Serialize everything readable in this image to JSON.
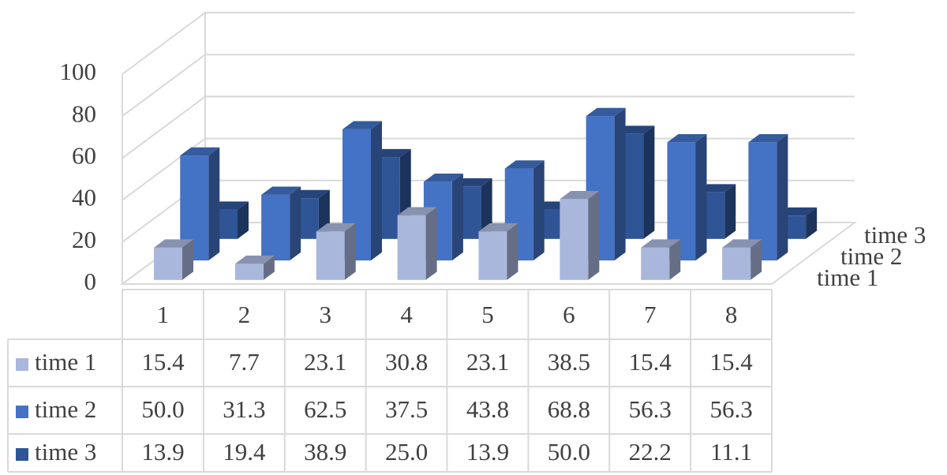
{
  "chart_data": {
    "type": "bar3d",
    "categories": [
      "1",
      "2",
      "3",
      "4",
      "5",
      "6",
      "7",
      "8"
    ],
    "series": [
      {
        "name": "time 1",
        "color": "#a9b7dc",
        "values": [
          15.4,
          7.7,
          23.1,
          30.8,
          23.1,
          38.5,
          15.4,
          15.4
        ],
        "value_labels": [
          "15.4",
          "7.7",
          "23.1",
          "30.8",
          "23.1",
          "38.5",
          "15.4",
          "15.4"
        ]
      },
      {
        "name": "time 2",
        "color": "#4472c4",
        "values": [
          50,
          31.3,
          62.5,
          37.5,
          43.8,
          68.8,
          56.3,
          56.3
        ],
        "value_labels": [
          "50.0",
          "31.3",
          "62.5",
          "37.5",
          "43.8",
          "68.8",
          "56.3",
          "56.3"
        ]
      },
      {
        "name": "time 3",
        "color": "#2f5597",
        "values": [
          13.9,
          19.4,
          38.9,
          25,
          13.9,
          50,
          22.2,
          11.1
        ],
        "value_labels": [
          "13.9",
          "19.4",
          "38.9",
          "25.0",
          "13.9",
          "50.0",
          "22.2",
          "11.1"
        ]
      }
    ],
    "ylim": [
      0,
      100
    ],
    "yticks": [
      0,
      20,
      40,
      60,
      80,
      100
    ],
    "grid": true
  }
}
